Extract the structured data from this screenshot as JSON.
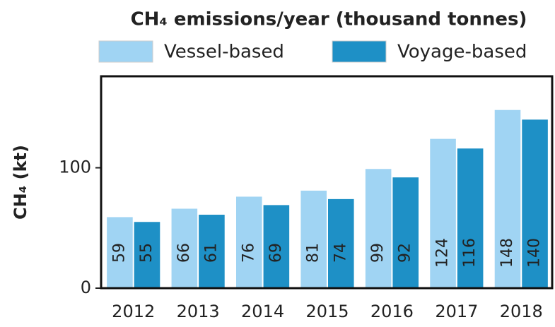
{
  "chart_data": {
    "type": "bar",
    "title": "CH₄ emissions/year (thousand tonnes)",
    "y_label": "CH₄ (kt)",
    "categories": [
      "2012",
      "2013",
      "2014",
      "2015",
      "2016",
      "2017",
      "2018"
    ],
    "series": [
      {
        "name": "Vessel-based",
        "color": "#a0d4f3",
        "values": [
          59,
          66,
          76,
          81,
          99,
          124,
          148
        ]
      },
      {
        "name": "Voyage-based",
        "color": "#1e90c6",
        "values": [
          55,
          61,
          69,
          74,
          92,
          116,
          140
        ]
      }
    ],
    "ylim": [
      0,
      176
    ],
    "yticks": [
      0,
      100
    ],
    "grid": false
  }
}
